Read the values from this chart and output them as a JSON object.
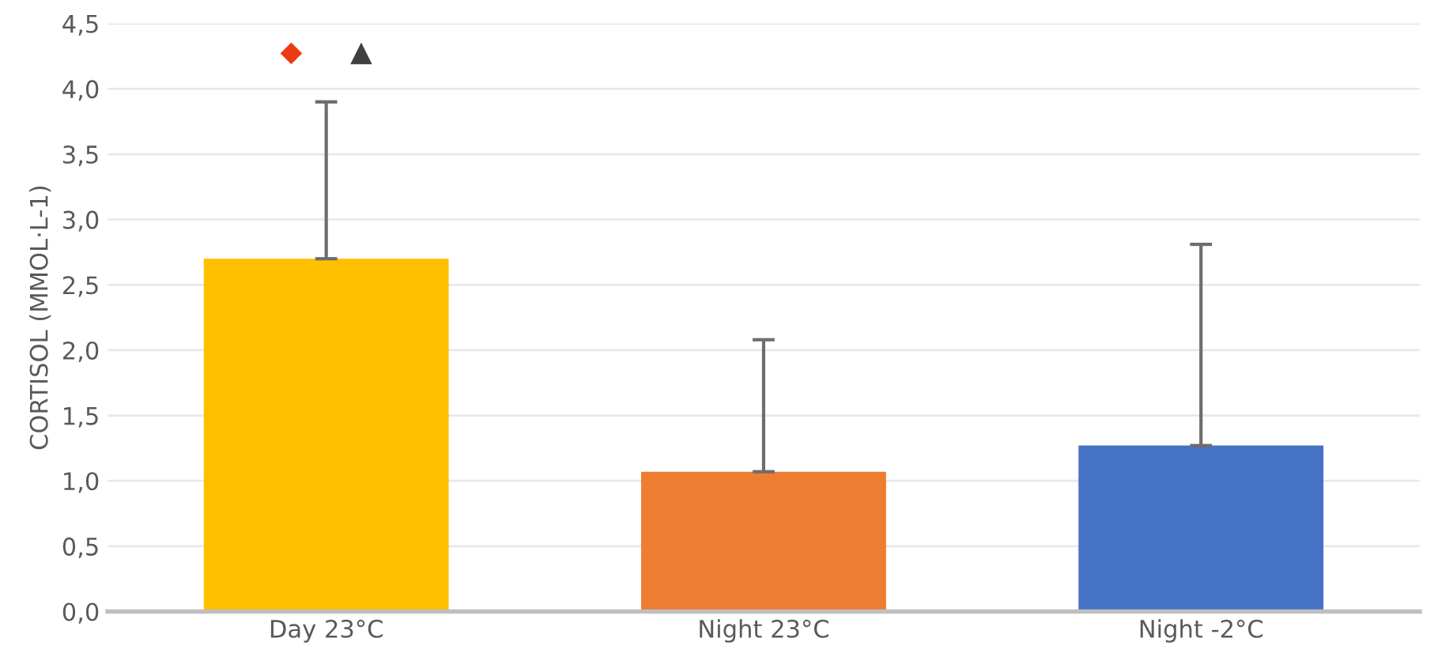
{
  "chart_data": {
    "type": "bar",
    "ylabel": "CORTISOL (MMOL·L-1)",
    "categories": [
      "Day 23°C",
      "Night 23°C",
      "Night -2°C"
    ],
    "values": [
      2.7,
      1.07,
      1.27
    ],
    "colors": [
      "#ffc000",
      "#ed7d31",
      "#4472c4"
    ],
    "errors": [
      [
        2.7,
        3.9
      ],
      [
        1.07,
        2.08
      ],
      [
        1.27,
        2.81
      ]
    ],
    "ylim": [
      0,
      4.5
    ],
    "yticks": [
      {
        "value": 0,
        "label": "0,0"
      },
      {
        "value": 0.5,
        "label": "0,5"
      },
      {
        "value": 1,
        "label": "1,0"
      },
      {
        "value": 1.5,
        "label": "1,5"
      },
      {
        "value": 2,
        "label": "2,0"
      },
      {
        "value": 2.5,
        "label": "2,5"
      },
      {
        "value": 3,
        "label": "3,0"
      },
      {
        "value": 3.5,
        "label": "3,5"
      },
      {
        "value": 4,
        "label": "4,0"
      },
      {
        "value": 4.5,
        "label": "4,5"
      }
    ],
    "grid": "y",
    "annotations": [
      "◆",
      "▲"
    ]
  }
}
